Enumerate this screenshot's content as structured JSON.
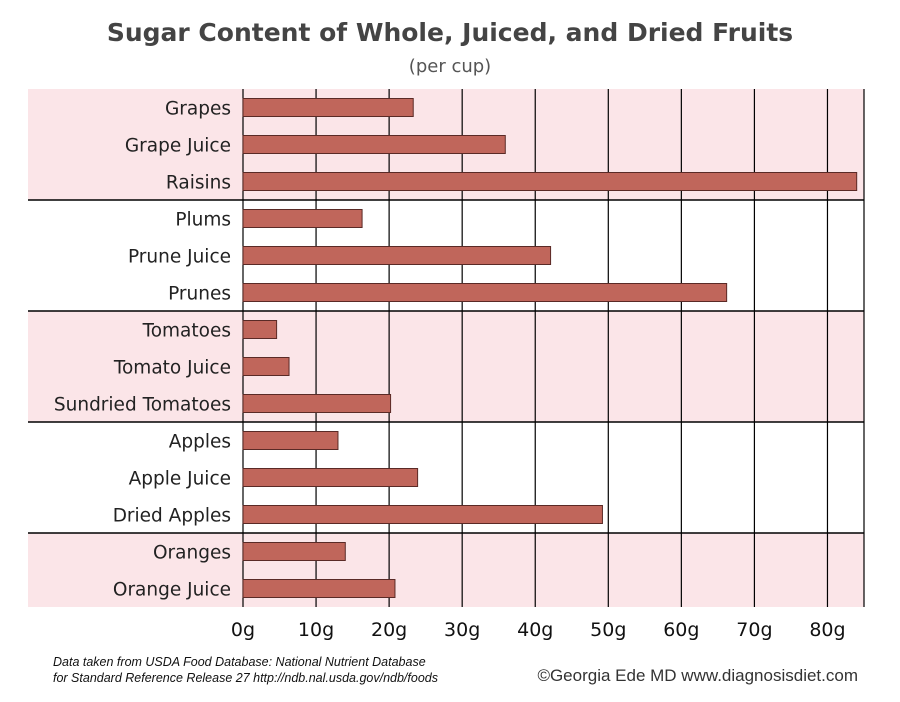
{
  "chart_data": {
    "type": "bar",
    "orientation": "horizontal",
    "title": "Sugar Content of Whole, Juiced, and Dried Fruits",
    "subtitle": "(per cup)",
    "categories": [
      "Grapes",
      "Grape Juice",
      "Raisins",
      "Plums",
      "Prune Juice",
      "Prunes",
      "Tomatoes",
      "Tomato Juice",
      "Sundried Tomatoes",
      "Apples",
      "Apple Juice",
      "Dried Apples",
      "Oranges",
      "Orange Juice"
    ],
    "values": [
      23.3,
      35.9,
      84.0,
      16.3,
      42.1,
      66.2,
      4.6,
      6.3,
      20.2,
      13.0,
      23.9,
      49.2,
      14.0,
      20.8
    ],
    "groups": [
      {
        "items": [
          "Grapes",
          "Grape Juice",
          "Raisins"
        ],
        "shaded": true
      },
      {
        "items": [
          "Plums",
          "Prune Juice",
          "Prunes"
        ],
        "shaded": false
      },
      {
        "items": [
          "Tomatoes",
          "Tomato Juice",
          "Sundried Tomatoes"
        ],
        "shaded": true
      },
      {
        "items": [
          "Apples",
          "Apple Juice",
          "Dried Apples"
        ],
        "shaded": false
      },
      {
        "items": [
          "Oranges",
          "Orange Juice"
        ],
        "shaded": true
      }
    ],
    "xlim": [
      0,
      85
    ],
    "xticks": [
      0,
      10,
      20,
      30,
      40,
      50,
      60,
      70,
      80
    ],
    "xtick_labels": [
      "0g",
      "10g",
      "20g",
      "30g",
      "40g",
      "50g",
      "60g",
      "70g",
      "80g"
    ],
    "grid": true,
    "colors": {
      "bar": "#c0665b",
      "bar_border": "#5a2a26",
      "shade": "#fbe5e8",
      "grid": "#000000"
    }
  },
  "footer": {
    "source_line1": "Data taken from USDA Food Database: National Nutrient Database",
    "source_line2": "for Standard Reference Release 27 http://ndb.nal.usda.gov/ndb/foods",
    "credit": "©Georgia Ede MD  www.diagnosisdiet.com"
  }
}
